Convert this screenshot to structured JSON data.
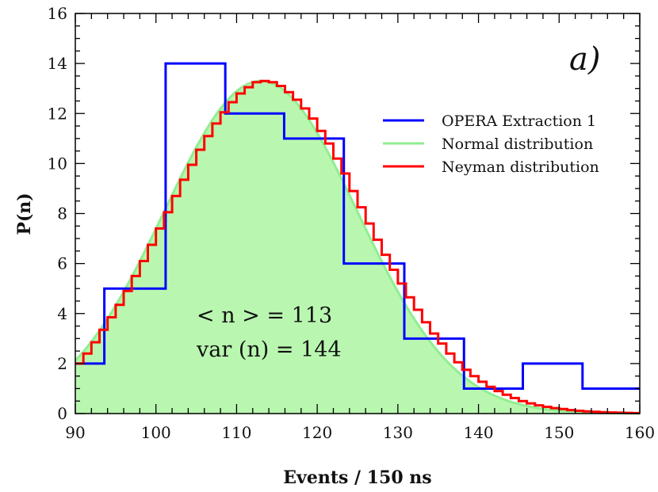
{
  "chart_data": {
    "type": "line",
    "title": "",
    "panel_label": "a)",
    "xlabel": "Events / 150 ns",
    "ylabel": "P(n)",
    "xlim": [
      90,
      160
    ],
    "ylim": [
      0,
      16
    ],
    "xticks": [
      90,
      100,
      110,
      120,
      130,
      140,
      150,
      160
    ],
    "yticks": [
      0,
      2,
      4,
      6,
      8,
      10,
      12,
      14,
      16
    ],
    "grid": false,
    "legend_position": "top-right",
    "annotations": [
      "< n > = 113",
      "var (n) = 144"
    ],
    "series": [
      {
        "name": "OPERA Extraction 1",
        "kind": "histogram-step",
        "color": "#0000ff",
        "bin_edges": [
          90,
          93.6,
          101.2,
          108.6,
          115.9,
          123.3,
          130.8,
          138.2,
          145.5,
          152.9,
          160
        ],
        "values": [
          2,
          5,
          14,
          12,
          11,
          6,
          3,
          1,
          2,
          1
        ]
      },
      {
        "name": "Normal distribution",
        "kind": "curve-filled",
        "color": "#90ee90",
        "fill": "#b9f7b0",
        "mean": 113,
        "variance": 144,
        "peak": 13.3
      },
      {
        "name": "Neyman distribution",
        "kind": "step",
        "color": "#ff0000",
        "x": [
          90,
          91,
          92,
          93,
          94,
          95,
          96,
          97,
          98,
          99,
          100,
          101,
          102,
          103,
          104,
          105,
          106,
          107,
          108,
          109,
          110,
          111,
          112,
          113,
          114,
          115,
          116,
          117,
          118,
          119,
          120,
          121,
          122,
          123,
          124,
          125,
          126,
          127,
          128,
          129,
          130,
          131,
          132,
          133,
          134,
          135,
          136,
          137,
          138,
          139,
          140,
          141,
          142,
          143,
          144,
          145,
          146,
          147,
          148,
          149,
          150,
          151,
          152,
          153,
          154,
          155,
          156,
          157,
          158,
          159
        ],
        "values": [
          2.0,
          2.4,
          2.85,
          3.35,
          3.85,
          4.35,
          4.9,
          5.5,
          6.1,
          6.75,
          7.4,
          8.05,
          8.7,
          9.35,
          9.95,
          10.55,
          11.1,
          11.6,
          12.05,
          12.45,
          12.8,
          13.05,
          13.25,
          13.3,
          13.25,
          13.1,
          12.85,
          12.55,
          12.2,
          11.8,
          11.3,
          10.8,
          10.2,
          9.6,
          8.9,
          8.25,
          7.6,
          6.95,
          6.35,
          5.75,
          5.2,
          4.65,
          4.15,
          3.65,
          3.2,
          2.8,
          2.4,
          2.05,
          1.75,
          1.5,
          1.27,
          1.07,
          0.9,
          0.75,
          0.62,
          0.5,
          0.41,
          0.33,
          0.27,
          0.22,
          0.18,
          0.14,
          0.11,
          0.09,
          0.07,
          0.055,
          0.045,
          0.035,
          0.03,
          0.02
        ]
      }
    ]
  }
}
